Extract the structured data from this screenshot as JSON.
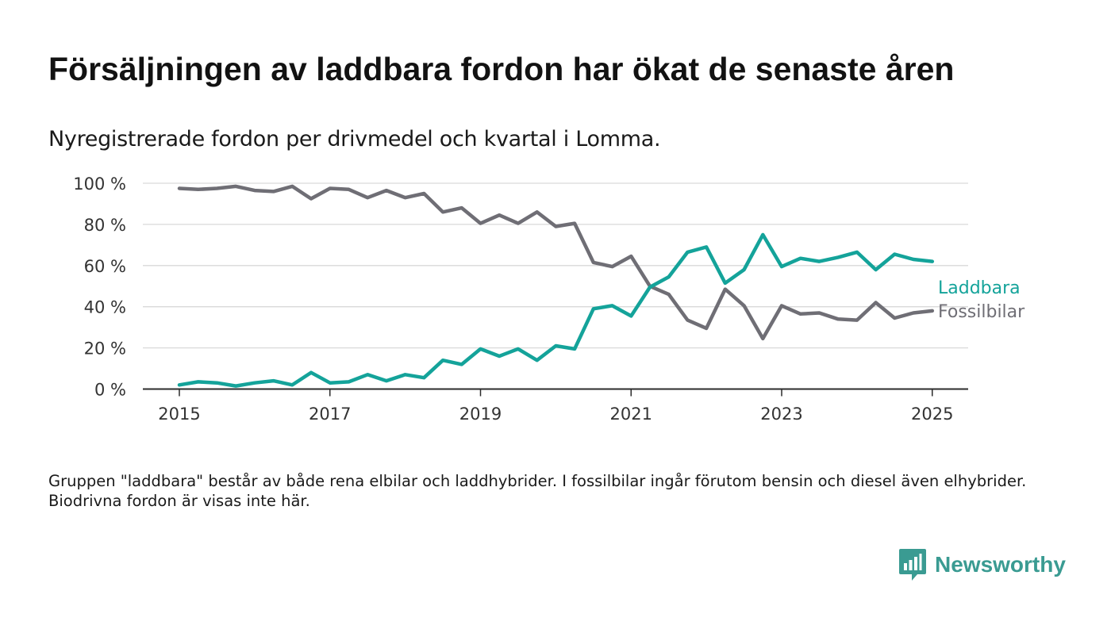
{
  "title": "Försäljningen av laddbara fordon har ökat de senaste åren",
  "subtitle": "Nyregistrerade fordon per drivmedel och kvartal i Lomma.",
  "footnote": "Gruppen \"laddbara\" består av både rena elbilar och laddhybrider. I fossilbilar ingår förutom bensin och diesel även elhybrider. Biodrivna fordon är visas inte här.",
  "brand": {
    "name": "Newsworthy",
    "icon": "newsworthy-logo-icon",
    "color": "#3a9b92"
  },
  "chart_data": {
    "type": "line",
    "x_ticks": [
      "2015",
      "2017",
      "2019",
      "2021",
      "2023",
      "2025"
    ],
    "y_ticks": [
      "0 %",
      "20 %",
      "40 %",
      "60 %",
      "80 %",
      "100 %"
    ],
    "ylim": [
      0,
      100
    ],
    "grid": true,
    "legend_placement": "right, at line ends",
    "x": [
      "2015Q1",
      "2015Q2",
      "2015Q3",
      "2015Q4",
      "2016Q1",
      "2016Q2",
      "2016Q3",
      "2016Q4",
      "2017Q1",
      "2017Q2",
      "2017Q3",
      "2017Q4",
      "2018Q1",
      "2018Q2",
      "2018Q3",
      "2018Q4",
      "2019Q1",
      "2019Q2",
      "2019Q3",
      "2019Q4",
      "2020Q1",
      "2020Q2",
      "2020Q3",
      "2020Q4",
      "2021Q1",
      "2021Q2",
      "2021Q3",
      "2021Q4",
      "2022Q1",
      "2022Q2",
      "2022Q3",
      "2022Q4",
      "2023Q1",
      "2023Q2",
      "2023Q3",
      "2023Q4",
      "2024Q1",
      "2024Q2",
      "2024Q3",
      "2024Q4",
      "2025Q1"
    ],
    "series": [
      {
        "name": "Laddbara",
        "color": "#14a39a",
        "values": [
          2,
          3.5,
          3,
          1.5,
          3,
          4,
          2,
          8,
          3,
          3.5,
          7,
          4,
          7,
          5.5,
          14,
          12,
          19.5,
          16,
          19.5,
          14,
          21,
          19.5,
          39,
          40.5,
          35.5,
          49.5,
          54.5,
          66.5,
          69,
          51.5,
          58,
          75,
          59.5,
          63.5,
          62,
          64,
          66.5,
          58,
          65.5,
          63,
          62
        ]
      },
      {
        "name": "Fossilbilar",
        "color": "#6f6e75",
        "values": [
          97.5,
          97,
          97.5,
          98.5,
          96.5,
          96,
          98.5,
          92.5,
          97.5,
          97,
          93,
          96.5,
          93,
          95,
          86,
          88,
          80.5,
          84.5,
          80.5,
          86,
          79,
          80.5,
          61.5,
          59.5,
          64.5,
          50,
          46,
          33.5,
          29.5,
          48.5,
          40.5,
          24.5,
          40.5,
          36.5,
          37,
          34,
          33.5,
          42,
          34.5,
          37,
          38
        ]
      }
    ]
  }
}
